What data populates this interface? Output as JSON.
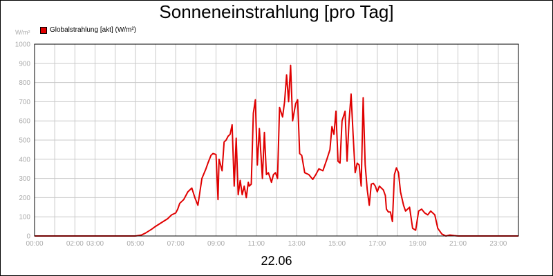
{
  "chart_data": {
    "type": "line",
    "title": "Sonneneinstrahlung [pro Tag]",
    "ylabel": "W/m²",
    "xlabel": "22.06",
    "ylim": [
      0,
      1000
    ],
    "xlim": [
      0,
      24
    ],
    "yticks": [
      0,
      100,
      200,
      300,
      400,
      500,
      600,
      700,
      800,
      900,
      1000
    ],
    "ytick_labels": [
      "0",
      "100",
      "200",
      "300",
      "400",
      "500",
      "600",
      "700",
      "800",
      "900",
      "1000"
    ],
    "xticks": [
      0,
      2,
      3,
      5,
      7,
      9,
      11,
      13,
      15,
      17,
      19,
      21,
      23
    ],
    "xtick_labels": [
      "00:00",
      "02:00",
      "03:00",
      "05:00",
      "07:00",
      "09:00",
      "11:00",
      "13:00",
      "15:00",
      "17:00",
      "19:00",
      "21:00",
      "23:00"
    ],
    "grid": true,
    "legend": "top-left",
    "series": [
      {
        "name": "Globalstrahlung [akt] (W/m²)",
        "color": "#e00000",
        "x": [
          0,
          5.0,
          5.3,
          5.5,
          5.8,
          6.0,
          6.3,
          6.6,
          6.8,
          7.0,
          7.1,
          7.2,
          7.4,
          7.6,
          7.8,
          7.95,
          8.1,
          8.3,
          8.5,
          8.6,
          8.75,
          8.85,
          9.0,
          9.1,
          9.15,
          9.3,
          9.4,
          9.5,
          9.6,
          9.7,
          9.8,
          9.9,
          10.0,
          10.1,
          10.2,
          10.3,
          10.4,
          10.5,
          10.6,
          10.65,
          10.75,
          10.85,
          10.95,
          11.05,
          11.15,
          11.3,
          11.4,
          11.5,
          11.6,
          11.75,
          11.85,
          11.95,
          12.05,
          12.15,
          12.3,
          12.4,
          12.5,
          12.6,
          12.7,
          12.8,
          12.95,
          13.05,
          13.15,
          13.25,
          13.4,
          13.6,
          13.8,
          13.95,
          14.1,
          14.3,
          14.5,
          14.65,
          14.75,
          14.85,
          14.95,
          15.05,
          15.15,
          15.25,
          15.4,
          15.5,
          15.6,
          15.7,
          15.8,
          15.9,
          16.0,
          16.1,
          16.2,
          16.3,
          16.4,
          16.5,
          16.6,
          16.7,
          16.8,
          16.9,
          17.0,
          17.1,
          17.2,
          17.3,
          17.4,
          17.45,
          17.55,
          17.65,
          17.75,
          17.85,
          17.95,
          18.05,
          18.15,
          18.3,
          18.4,
          18.5,
          18.6,
          18.75,
          18.9,
          19.05,
          19.2,
          19.35,
          19.5,
          19.65,
          19.85,
          20.0,
          20.2,
          20.4,
          20.6,
          20.8,
          21.0,
          21.2,
          21.5,
          24
        ],
        "values": [
          0,
          0,
          5,
          15,
          35,
          50,
          70,
          90,
          110,
          120,
          140,
          170,
          190,
          230,
          250,
          200,
          160,
          300,
          350,
          380,
          420,
          430,
          425,
          190,
          400,
          340,
          490,
          500,
          520,
          530,
          580,
          260,
          510,
          215,
          290,
          215,
          260,
          200,
          280,
          260,
          270,
          640,
          710,
          370,
          560,
          300,
          540,
          320,
          330,
          280,
          320,
          330,
          300,
          670,
          620,
          700,
          840,
          700,
          890,
          600,
          690,
          710,
          430,
          420,
          330,
          320,
          295,
          320,
          350,
          340,
          400,
          450,
          570,
          530,
          650,
          390,
          380,
          600,
          650,
          390,
          600,
          740,
          530,
          330,
          380,
          370,
          260,
          720,
          370,
          240,
          160,
          270,
          275,
          260,
          230,
          260,
          250,
          240,
          210,
          140,
          125,
          125,
          75,
          320,
          355,
          330,
          230,
          160,
          130,
          140,
          150,
          40,
          30,
          130,
          140,
          120,
          110,
          130,
          110,
          40,
          10,
          0,
          5,
          2,
          0,
          0,
          0,
          0
        ]
      }
    ]
  }
}
